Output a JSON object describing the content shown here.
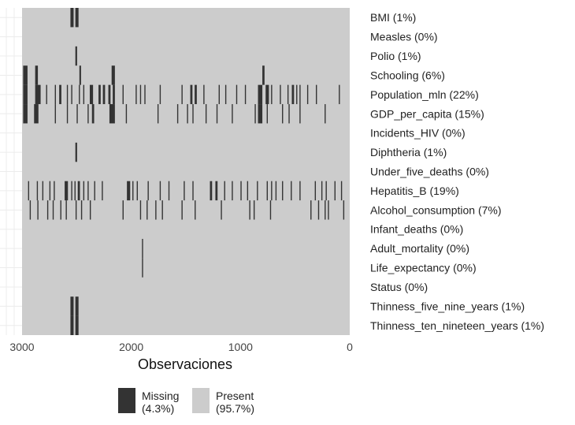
{
  "chart_data": {
    "type": "heatmap",
    "subtype": "missingness-map",
    "title": "",
    "xlabel": "Observaciones",
    "ylabel": "",
    "xlim": [
      3000,
      0
    ],
    "n_observations": 2938,
    "x_ticks": [
      3000,
      2000,
      1000,
      0
    ],
    "colors": {
      "missing": "#333333",
      "present": "#cccccc"
    },
    "grid": true,
    "legend_placement": "bottom",
    "legend": [
      {
        "key": "missing",
        "name": "Missing",
        "percent_label": "(4.3%)"
      },
      {
        "key": "present",
        "name": "Present",
        "percent_label": "(95.7%)"
      }
    ],
    "variables": [
      {
        "name": "BMI",
        "label": "BMI (1%)",
        "missing_pct": 1,
        "missing_ranges": [
          [
            2557,
            2528
          ],
          [
            2512,
            2483
          ]
        ]
      },
      {
        "name": "Measles",
        "label": "Measles (0%)",
        "missing_pct": 0,
        "missing_ranges": []
      },
      {
        "name": "Polio",
        "label": "Polio (1%)",
        "missing_pct": 1,
        "missing_ranges": [
          [
            2512,
            2496
          ]
        ]
      },
      {
        "name": "Schooling",
        "label": "Schooling (6%)",
        "missing_pct": 6,
        "missing_ranges": [
          [
            2990,
            2950
          ],
          [
            2880,
            2855
          ],
          [
            2475,
            2460
          ],
          [
            2180,
            2150
          ],
          [
            800,
            780
          ]
        ]
      },
      {
        "name": "Population_mln",
        "label": "Population_mln (22%)",
        "missing_pct": 22,
        "missing_ranges": [
          [
            2990,
            2950
          ],
          [
            2880,
            2830
          ],
          [
            2780,
            2770
          ],
          [
            2700,
            2690
          ],
          [
            2660,
            2640
          ],
          [
            2590,
            2580
          ],
          [
            2550,
            2540
          ],
          [
            2480,
            2470
          ],
          [
            2440,
            2430
          ],
          [
            2380,
            2350
          ],
          [
            2300,
            2280
          ],
          [
            2260,
            2240
          ],
          [
            2210,
            2190
          ],
          [
            2170,
            2150
          ],
          [
            2080,
            2070
          ],
          [
            1960,
            1950
          ],
          [
            1920,
            1910
          ],
          [
            1880,
            1870
          ],
          [
            1740,
            1730
          ],
          [
            1540,
            1530
          ],
          [
            1460,
            1440
          ],
          [
            1420,
            1400
          ],
          [
            1340,
            1330
          ],
          [
            1200,
            1190
          ],
          [
            1140,
            1130
          ],
          [
            1040,
            1030
          ],
          [
            960,
            950
          ],
          [
            840,
            800
          ],
          [
            770,
            740
          ],
          [
            720,
            710
          ],
          [
            640,
            630
          ],
          [
            570,
            560
          ],
          [
            530,
            510
          ],
          [
            490,
            480
          ],
          [
            460,
            450
          ],
          [
            390,
            380
          ],
          [
            310,
            300
          ],
          [
            100,
            90
          ]
        ]
      },
      {
        "name": "GDP_per_capita",
        "label": "GDP_per_capita (15%)",
        "missing_pct": 15,
        "missing_ranges": [
          [
            2990,
            2950
          ],
          [
            2890,
            2850
          ],
          [
            2700,
            2690
          ],
          [
            2590,
            2580
          ],
          [
            2500,
            2490
          ],
          [
            2400,
            2390
          ],
          [
            2360,
            2340
          ],
          [
            2200,
            2150
          ],
          [
            2050,
            2040
          ],
          [
            1760,
            1750
          ],
          [
            1580,
            1570
          ],
          [
            1490,
            1480
          ],
          [
            1440,
            1430
          ],
          [
            1320,
            1310
          ],
          [
            1220,
            1210
          ],
          [
            1080,
            1070
          ],
          [
            870,
            860
          ],
          [
            840,
            800
          ],
          [
            760,
            750
          ],
          [
            620,
            610
          ],
          [
            560,
            550
          ],
          [
            460,
            450
          ],
          [
            230,
            220
          ]
        ]
      },
      {
        "name": "Incidents_HIV",
        "label": "Incidents_HIV (0%)",
        "missing_pct": 0,
        "missing_ranges": []
      },
      {
        "name": "Diphtheria",
        "label": "Diphtheria (1%)",
        "missing_pct": 1,
        "missing_ranges": [
          [
            2512,
            2496
          ]
        ]
      },
      {
        "name": "Under_five_deaths",
        "label": "Under_five_deaths (0%)",
        "missing_pct": 0,
        "missing_ranges": []
      },
      {
        "name": "Hepatitis_B",
        "label": "Hepatitis_B (19%)",
        "missing_pct": 19,
        "missing_ranges": [
          [
            2945,
            2935
          ],
          [
            2865,
            2855
          ],
          [
            2815,
            2805
          ],
          [
            2750,
            2740
          ],
          [
            2710,
            2700
          ],
          [
            2610,
            2580
          ],
          [
            2550,
            2540
          ],
          [
            2520,
            2510
          ],
          [
            2490,
            2470
          ],
          [
            2440,
            2430
          ],
          [
            2400,
            2390
          ],
          [
            2340,
            2330
          ],
          [
            2270,
            2260
          ],
          [
            2040,
            2010
          ],
          [
            1990,
            1980
          ],
          [
            1950,
            1940
          ],
          [
            1850,
            1840
          ],
          [
            1740,
            1730
          ],
          [
            1660,
            1650
          ],
          [
            1520,
            1510
          ],
          [
            1440,
            1430
          ],
          [
            1280,
            1260
          ],
          [
            1230,
            1210
          ],
          [
            1150,
            1140
          ],
          [
            1080,
            1070
          ],
          [
            1000,
            990
          ],
          [
            940,
            930
          ],
          [
            850,
            840
          ],
          [
            760,
            750
          ],
          [
            720,
            710
          ],
          [
            680,
            670
          ],
          [
            620,
            610
          ],
          [
            540,
            530
          ],
          [
            460,
            450
          ],
          [
            320,
            310
          ],
          [
            260,
            250
          ],
          [
            220,
            210
          ],
          [
            140,
            130
          ],
          [
            80,
            70
          ]
        ]
      },
      {
        "name": "Alcohol_consumption",
        "label": "Alcohol_consumption (7%)",
        "missing_pct": 7,
        "missing_ranges": [
          [
            2930,
            2920
          ],
          [
            2860,
            2850
          ],
          [
            2770,
            2760
          ],
          [
            2720,
            2710
          ],
          [
            2650,
            2640
          ],
          [
            2600,
            2590
          ],
          [
            2510,
            2500
          ],
          [
            2460,
            2450
          ],
          [
            2380,
            2370
          ],
          [
            2080,
            2070
          ],
          [
            1920,
            1910
          ],
          [
            1860,
            1850
          ],
          [
            1780,
            1770
          ],
          [
            1720,
            1710
          ],
          [
            1540,
            1530
          ],
          [
            1420,
            1410
          ],
          [
            1180,
            1170
          ],
          [
            920,
            910
          ],
          [
            880,
            870
          ],
          [
            730,
            720
          ],
          [
            360,
            350
          ],
          [
            290,
            280
          ],
          [
            230,
            220
          ],
          [
            200,
            190
          ],
          [
            60,
            50
          ]
        ]
      },
      {
        "name": "Infant_deaths",
        "label": "Infant_deaths (0%)",
        "missing_pct": 0,
        "missing_ranges": []
      },
      {
        "name": "Adult_mortality",
        "label": "Adult_mortality (0%)",
        "missing_pct": 0,
        "missing_ranges": [
          [
            1902,
            1892
          ]
        ]
      },
      {
        "name": "Life_expectancy",
        "label": "Life_expectancy (0%)",
        "missing_pct": 0,
        "missing_ranges": [
          [
            1902,
            1892
          ]
        ]
      },
      {
        "name": "Status",
        "label": "Status (0%)",
        "missing_pct": 0,
        "missing_ranges": []
      },
      {
        "name": "Thinness_five_nine_years",
        "label": "Thinness_five_nine_years (1%)",
        "missing_pct": 1,
        "missing_ranges": [
          [
            2557,
            2528
          ],
          [
            2512,
            2483
          ]
        ]
      },
      {
        "name": "Thinness_ten_nineteen_years",
        "label": "Thinness_ten_nineteen_years (1%)",
        "missing_pct": 1,
        "missing_ranges": [
          [
            2557,
            2528
          ],
          [
            2512,
            2483
          ]
        ]
      }
    ]
  }
}
